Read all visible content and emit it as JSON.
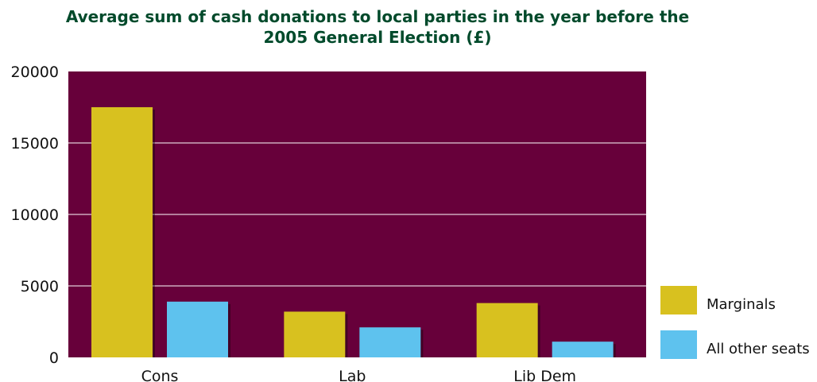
{
  "chart_data": {
    "type": "bar",
    "title_lines": [
      "Average sum of cash donations to local parties in the year before the",
      "2005 General Election (£)"
    ],
    "categories": [
      "Cons",
      "Lab",
      "Lib Dem"
    ],
    "series": [
      {
        "name": "Marginals",
        "values": [
          17500,
          3200,
          3800
        ],
        "color": "#d8c11f"
      },
      {
        "name": "All other seats",
        "values": [
          3900,
          2100,
          1100
        ],
        "color": "#5ec2ee"
      }
    ],
    "yticks": [
      0,
      5000,
      10000,
      15000,
      20000
    ],
    "ylim": [
      0,
      20000
    ],
    "grid": true,
    "legend_position": "right",
    "plot_background": "#67003a",
    "gridline_color": "#ffffff",
    "title_color": "#004a2b"
  }
}
